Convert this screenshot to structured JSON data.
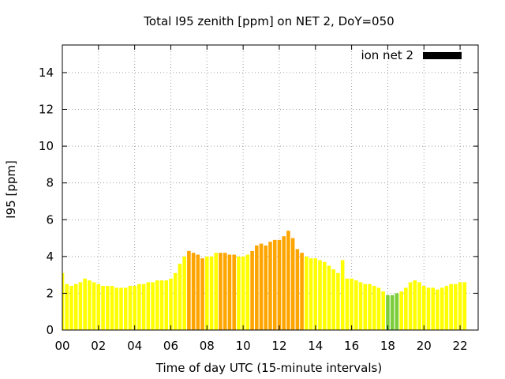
{
  "chart_data": {
    "type": "bar",
    "title": "Total I95 zenith [ppm] on NET 2, DoY=050",
    "xlabel": "Time of day UTC (15-minute intervals)",
    "ylabel": "I95 [ppm]",
    "xlim": [
      0,
      23
    ],
    "ylim": [
      0,
      15.5
    ],
    "grid": true,
    "legend_position": "top-right",
    "x_ticks": [
      "00",
      "02",
      "04",
      "06",
      "08",
      "10",
      "12",
      "14",
      "16",
      "18",
      "20",
      "22"
    ],
    "y_ticks": [
      "0",
      "2",
      "4",
      "6",
      "8",
      "10",
      "12",
      "14"
    ],
    "series": [
      {
        "name": "ion net 2",
        "legend_color": "#000000",
        "x_interval_hours": 0.25,
        "values": [
          3.1,
          2.5,
          2.4,
          2.5,
          2.6,
          2.8,
          2.7,
          2.6,
          2.5,
          2.4,
          2.4,
          2.4,
          2.3,
          2.3,
          2.3,
          2.4,
          2.4,
          2.5,
          2.5,
          2.6,
          2.6,
          2.7,
          2.7,
          2.7,
          2.8,
          3.1,
          3.6,
          4.0,
          4.3,
          4.2,
          4.1,
          3.9,
          4.0,
          4.0,
          4.2,
          4.2,
          4.2,
          4.1,
          4.1,
          4.0,
          4.0,
          4.1,
          4.3,
          4.6,
          4.7,
          4.6,
          4.8,
          4.9,
          4.9,
          5.1,
          5.4,
          5.0,
          4.4,
          4.2,
          4.0,
          3.9,
          3.9,
          3.8,
          3.7,
          3.5,
          3.3,
          3.1,
          3.8,
          2.8,
          2.8,
          2.7,
          2.6,
          2.5,
          2.5,
          2.4,
          2.3,
          2.1,
          1.9,
          1.9,
          2.0,
          2.1,
          2.3,
          2.6,
          2.7,
          2.6,
          2.4,
          2.3,
          2.3,
          2.2,
          2.3,
          2.4,
          2.5,
          2.5,
          2.6,
          2.6
        ],
        "color_levels": {
          "yellow": "#ffff00",
          "orange": "#ffa500",
          "green": "#7ccd3a"
        },
        "bar_colors": [
          "yellow",
          "yellow",
          "yellow",
          "yellow",
          "yellow",
          "yellow",
          "yellow",
          "yellow",
          "yellow",
          "yellow",
          "yellow",
          "yellow",
          "yellow",
          "yellow",
          "yellow",
          "yellow",
          "yellow",
          "yellow",
          "yellow",
          "yellow",
          "yellow",
          "yellow",
          "yellow",
          "yellow",
          "yellow",
          "yellow",
          "yellow",
          "yellow",
          "orange",
          "orange",
          "orange",
          "orange",
          "yellow",
          "yellow",
          "yellow",
          "orange",
          "orange",
          "orange",
          "orange",
          "yellow",
          "yellow",
          "yellow",
          "orange",
          "orange",
          "orange",
          "orange",
          "orange",
          "orange",
          "orange",
          "orange",
          "orange",
          "orange",
          "orange",
          "orange",
          "yellow",
          "yellow",
          "yellow",
          "yellow",
          "yellow",
          "yellow",
          "yellow",
          "yellow",
          "yellow",
          "yellow",
          "yellow",
          "yellow",
          "yellow",
          "yellow",
          "yellow",
          "yellow",
          "yellow",
          "yellow",
          "green",
          "green",
          "green",
          "yellow",
          "yellow",
          "yellow",
          "yellow",
          "yellow",
          "yellow",
          "yellow",
          "yellow",
          "yellow",
          "yellow",
          "yellow",
          "yellow",
          "yellow",
          "yellow",
          "yellow"
        ]
      }
    ]
  }
}
